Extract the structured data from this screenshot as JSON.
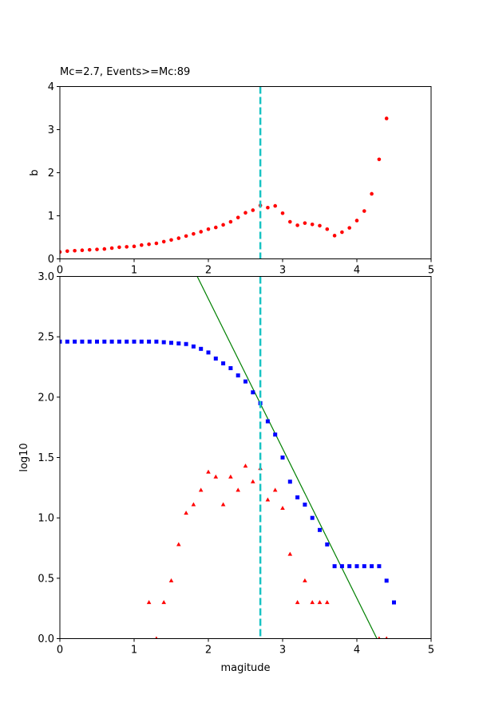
{
  "chart_data": [
    {
      "type": "scatter",
      "title": "Mc=2.7, Events>=Mc:89",
      "xlabel": "",
      "ylabel": "b",
      "xlim": [
        0,
        5
      ],
      "ylim": [
        0,
        4
      ],
      "xticks": [
        "0",
        "1",
        "2",
        "3",
        "4",
        "5"
      ],
      "yticks": [
        "0",
        "1",
        "2",
        "3",
        "4"
      ],
      "grid": false,
      "series": [
        {
          "marker": "circle",
          "color": "#ff0000",
          "points": [
            [
              0.0,
              0.16
            ],
            [
              0.1,
              0.18
            ],
            [
              0.2,
              0.19
            ],
            [
              0.3,
              0.2
            ],
            [
              0.4,
              0.21
            ],
            [
              0.5,
              0.22
            ],
            [
              0.6,
              0.23
            ],
            [
              0.7,
              0.25
            ],
            [
              0.8,
              0.27
            ],
            [
              0.9,
              0.28
            ],
            [
              1.0,
              0.29
            ],
            [
              1.1,
              0.32
            ],
            [
              1.2,
              0.34
            ],
            [
              1.3,
              0.36
            ],
            [
              1.4,
              0.4
            ],
            [
              1.5,
              0.44
            ],
            [
              1.6,
              0.48
            ],
            [
              1.7,
              0.53
            ],
            [
              1.8,
              0.58
            ],
            [
              1.9,
              0.63
            ],
            [
              2.0,
              0.69
            ],
            [
              2.1,
              0.73
            ],
            [
              2.2,
              0.79
            ],
            [
              2.3,
              0.86
            ],
            [
              2.4,
              0.96
            ],
            [
              2.5,
              1.07
            ],
            [
              2.6,
              1.13
            ],
            [
              2.7,
              1.24
            ],
            [
              2.8,
              1.19
            ],
            [
              2.9,
              1.23
            ],
            [
              3.0,
              1.06
            ],
            [
              3.1,
              0.86
            ],
            [
              3.2,
              0.78
            ],
            [
              3.3,
              0.83
            ],
            [
              3.4,
              0.8
            ],
            [
              3.5,
              0.77
            ],
            [
              3.6,
              0.69
            ],
            [
              3.7,
              0.54
            ],
            [
              3.8,
              0.62
            ],
            [
              3.9,
              0.72
            ],
            [
              4.0,
              0.89
            ],
            [
              4.1,
              1.11
            ],
            [
              4.2,
              1.51
            ],
            [
              4.3,
              2.31
            ],
            [
              4.4,
              3.26
            ]
          ]
        }
      ],
      "vlines": [
        {
          "x": 2.7,
          "color": "#17c3c3",
          "style": "dashed"
        }
      ]
    },
    {
      "type": "scatter",
      "title": "",
      "xlabel": "magitude",
      "ylabel": "log10",
      "xlim": [
        0,
        5
      ],
      "ylim": [
        0,
        3
      ],
      "xticks": [
        "0",
        "1",
        "2",
        "3",
        "4",
        "5"
      ],
      "yticks": [
        "0.0",
        "0.5",
        "1.0",
        "1.5",
        "2.0",
        "2.5",
        "3.0"
      ],
      "grid": false,
      "series": [
        {
          "marker": "square",
          "color": "#0000ff",
          "points": [
            [
              0.0,
              2.46
            ],
            [
              0.1,
              2.46
            ],
            [
              0.2,
              2.46
            ],
            [
              0.3,
              2.46
            ],
            [
              0.4,
              2.46
            ],
            [
              0.5,
              2.46
            ],
            [
              0.6,
              2.46
            ],
            [
              0.7,
              2.46
            ],
            [
              0.8,
              2.46
            ],
            [
              0.9,
              2.46
            ],
            [
              1.0,
              2.46
            ],
            [
              1.1,
              2.46
            ],
            [
              1.2,
              2.46
            ],
            [
              1.3,
              2.46
            ],
            [
              1.4,
              2.455
            ],
            [
              1.5,
              2.45
            ],
            [
              1.6,
              2.445
            ],
            [
              1.7,
              2.44
            ],
            [
              1.8,
              2.42
            ],
            [
              1.9,
              2.4
            ],
            [
              2.0,
              2.37
            ],
            [
              2.1,
              2.32
            ],
            [
              2.2,
              2.28
            ],
            [
              2.3,
              2.24
            ],
            [
              2.4,
              2.18
            ],
            [
              2.5,
              2.13
            ],
            [
              2.6,
              2.04
            ],
            [
              2.7,
              1.95
            ],
            [
              2.8,
              1.8
            ],
            [
              2.9,
              1.69
            ],
            [
              3.0,
              1.5
            ],
            [
              3.1,
              1.3
            ],
            [
              3.2,
              1.17
            ],
            [
              3.3,
              1.11
            ],
            [
              3.4,
              1.0
            ],
            [
              3.5,
              0.9
            ],
            [
              3.6,
              0.78
            ],
            [
              3.7,
              0.6
            ],
            [
              3.8,
              0.6
            ],
            [
              3.9,
              0.6
            ],
            [
              4.0,
              0.6
            ],
            [
              4.1,
              0.6
            ],
            [
              4.2,
              0.6
            ],
            [
              4.3,
              0.6
            ],
            [
              4.4,
              0.48
            ],
            [
              4.5,
              0.3
            ]
          ]
        },
        {
          "marker": "triangle",
          "color": "#ff0000",
          "points": [
            [
              1.2,
              0.3
            ],
            [
              1.3,
              0.0
            ],
            [
              1.4,
              0.3
            ],
            [
              1.5,
              0.48
            ],
            [
              1.6,
              0.78
            ],
            [
              1.7,
              1.04
            ],
            [
              1.8,
              1.11
            ],
            [
              1.9,
              1.23
            ],
            [
              2.0,
              1.38
            ],
            [
              2.1,
              1.34
            ],
            [
              2.2,
              1.11
            ],
            [
              2.3,
              1.34
            ],
            [
              2.4,
              1.23
            ],
            [
              2.5,
              1.43
            ],
            [
              2.6,
              1.3
            ],
            [
              2.7,
              1.41
            ],
            [
              2.8,
              1.15
            ],
            [
              2.9,
              1.23
            ],
            [
              3.0,
              1.08
            ],
            [
              3.1,
              0.7
            ],
            [
              3.2,
              0.3
            ],
            [
              3.3,
              0.48
            ],
            [
              3.4,
              0.3
            ],
            [
              3.5,
              0.3
            ],
            [
              3.6,
              0.3
            ],
            [
              4.3,
              0.0
            ],
            [
              4.4,
              0.0
            ]
          ]
        }
      ],
      "lines": [
        {
          "color": "#008000",
          "points": [
            [
              1.85,
              3.0
            ],
            [
              4.27,
              0.0
            ]
          ]
        }
      ],
      "vlines": [
        {
          "x": 2.7,
          "color": "#17c3c3",
          "style": "dashed"
        }
      ]
    }
  ]
}
